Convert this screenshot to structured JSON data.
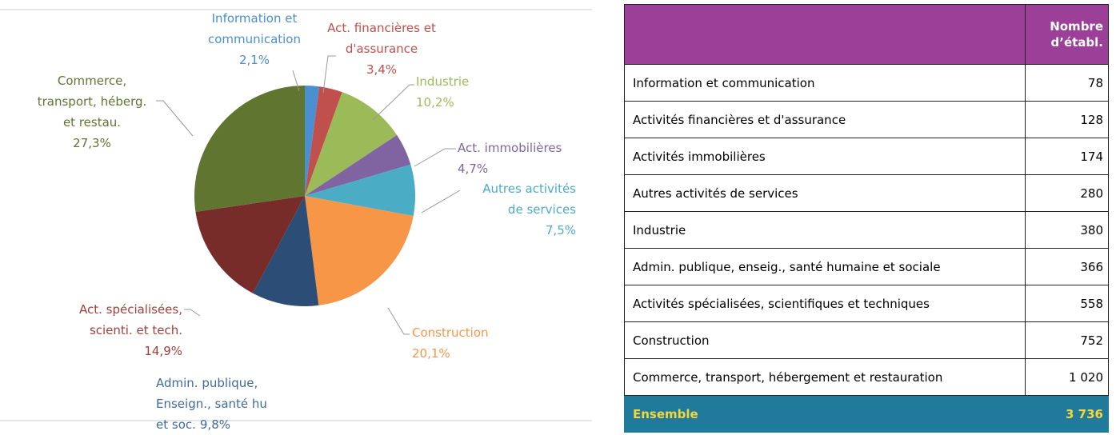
{
  "chart_data": {
    "type": "pie",
    "categories": [
      "Information et\ncommunication",
      "Act. financières et\nd'assurance",
      "Industrie",
      "Act. immobilières",
      "Autres activités\nde  services",
      "Construction",
      "Admin. publique,\nEnseign., santé hu\net soc.",
      "Act. spécialisées,\nscienti. et tech.",
      "Commerce,\ntransport, héberg.\net restau."
    ],
    "values": [
      2.1,
      3.4,
      10.2,
      4.7,
      7.5,
      20.1,
      9.8,
      14.9,
      27.3
    ],
    "value_labels": [
      "2,1%",
      "3,4%",
      "10,2%",
      "4,7%",
      "7,5%",
      "20,1%",
      "9,8%",
      "14,9%",
      "27,3%"
    ],
    "colors": [
      "#4a8fd0",
      "#c0504d",
      "#9bbb59",
      "#8064a2",
      "#4bacc6",
      "#f79646",
      "#2c4d75",
      "#772c2a",
      "#5f7530"
    ],
    "label_colors": [
      "#4a8fd0",
      "#c0504d",
      "#9bbb59",
      "#8064a2",
      "#4bacc6",
      "#f79646",
      "#3f6a9e",
      "#a0403c",
      "#5f7530"
    ]
  },
  "table": {
    "header": [
      "",
      "Nombre\nd’établ."
    ],
    "rows": [
      [
        "Information et communication",
        "78"
      ],
      [
        "Activités financières et d'assurance",
        "128"
      ],
      [
        "Activités immobilières",
        "174"
      ],
      [
        "Autres activités de services",
        "280"
      ],
      [
        "Industrie",
        "380"
      ],
      [
        "Admin. publique, enseig., santé humaine et sociale",
        "366"
      ],
      [
        "Activités spécialisées, scientifiques et techniques",
        "558"
      ],
      [
        "Construction",
        "752"
      ],
      [
        "Commerce, transport, hébergement et restauration",
        "1 020"
      ]
    ],
    "footer": [
      "Ensemble",
      "3 736"
    ]
  }
}
